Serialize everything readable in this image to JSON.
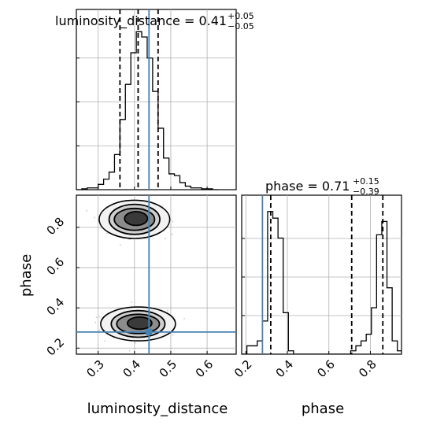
{
  "colors": {
    "truth": "#4682b4",
    "line": "#000000",
    "grid": "#b0b0b0",
    "frame": "#000000"
  },
  "chart_data": [
    {
      "type": "corner",
      "parameters": [
        "luminosity_distance",
        "phase"
      ],
      "truth": {
        "luminosity_distance": 0.44,
        "phase": 0.28
      },
      "axes_labels": {
        "x_bottom_left": "luminosity_distance",
        "x_bottom_right": "phase",
        "y_left": "phase"
      }
    },
    {
      "type": "histogram",
      "panel": "luminosity_distance-1d",
      "title_main": "luminosity_distance = 0.41",
      "title_sup": "+0.05",
      "title_sub": "−0.05",
      "xlim": [
        0.24,
        0.68
      ],
      "xticks": [
        0.3,
        0.4,
        0.5,
        0.6
      ],
      "xticklabels": [
        "0.3",
        "0.4",
        "0.5",
        "0.6"
      ],
      "bin_edges": [
        0.24,
        0.255,
        0.27,
        0.285,
        0.3,
        0.315,
        0.33,
        0.345,
        0.36,
        0.375,
        0.39,
        0.405,
        0.42,
        0.435,
        0.45,
        0.465,
        0.48,
        0.495,
        0.51,
        0.525,
        0.54,
        0.555,
        0.57,
        0.585,
        0.6,
        0.615,
        0.63
      ],
      "counts": [
        0.0,
        0.005,
        0.01,
        0.01,
        0.03,
        0.06,
        0.1,
        0.2,
        0.4,
        0.6,
        0.78,
        0.9,
        0.87,
        0.75,
        0.56,
        0.35,
        0.18,
        0.09,
        0.08,
        0.04,
        0.02,
        0.01,
        0.01,
        0.005,
        0.005,
        0.0
      ],
      "quantiles": [
        0.36,
        0.41,
        0.465
      ],
      "truth": 0.44
    },
    {
      "type": "histogram",
      "panel": "phase-1d",
      "title_main": "phase = 0.71",
      "title_sup": "+0.15",
      "title_sub": "−0.39",
      "xlim": [
        0.18,
        0.95
      ],
      "xticks": [
        0.2,
        0.4,
        0.6,
        0.8
      ],
      "xticklabels": [
        "0.2",
        "0.4",
        "0.6",
        "0.8"
      ],
      "bin_edges": [
        0.18,
        0.205,
        0.23,
        0.255,
        0.28,
        0.305,
        0.33,
        0.355,
        0.38,
        0.405,
        0.43,
        0.455,
        0.48,
        0.505,
        0.53,
        0.555,
        0.58,
        0.605,
        0.63,
        0.655,
        0.68,
        0.705,
        0.73,
        0.755,
        0.78,
        0.805,
        0.83,
        0.855,
        0.88,
        0.905,
        0.93,
        0.955
      ],
      "counts": [
        0.0,
        0.05,
        0.05,
        0.08,
        0.2,
        0.86,
        0.82,
        0.7,
        0.25,
        0.02,
        0.0,
        0.0,
        0.0,
        0.0,
        0.0,
        0.0,
        0.0,
        0.0,
        0.0,
        0.0,
        0.0,
        0.02,
        0.05,
        0.08,
        0.12,
        0.28,
        0.72,
        0.8,
        0.4,
        0.08,
        0.02
      ],
      "quantiles": [
        0.32,
        0.71,
        0.86
      ],
      "truth": 0.28
    },
    {
      "type": "scatter",
      "panel": "joint-2d",
      "xlim": [
        0.24,
        0.68
      ],
      "ylim": [
        0.17,
        0.96
      ],
      "xticks": [
        0.3,
        0.4,
        0.5,
        0.6
      ],
      "xticklabels": [
        "0.3",
        "0.4",
        "0.5",
        "0.6"
      ],
      "yticks": [
        0.2,
        0.4,
        0.6,
        0.8
      ],
      "yticklabels": [
        "0.2",
        "0.4",
        "0.6",
        "0.8"
      ],
      "modes": [
        {
          "x": 0.4,
          "y": 0.84,
          "sx": 0.033,
          "sy": 0.034,
          "n": 340
        },
        {
          "x": 0.41,
          "y": 0.32,
          "sx": 0.035,
          "sy": 0.03,
          "n": 390
        }
      ],
      "contour_levels": [
        1.0,
        1.6,
        2.2,
        2.8
      ],
      "truth": {
        "x": 0.44,
        "y": 0.28
      }
    }
  ]
}
